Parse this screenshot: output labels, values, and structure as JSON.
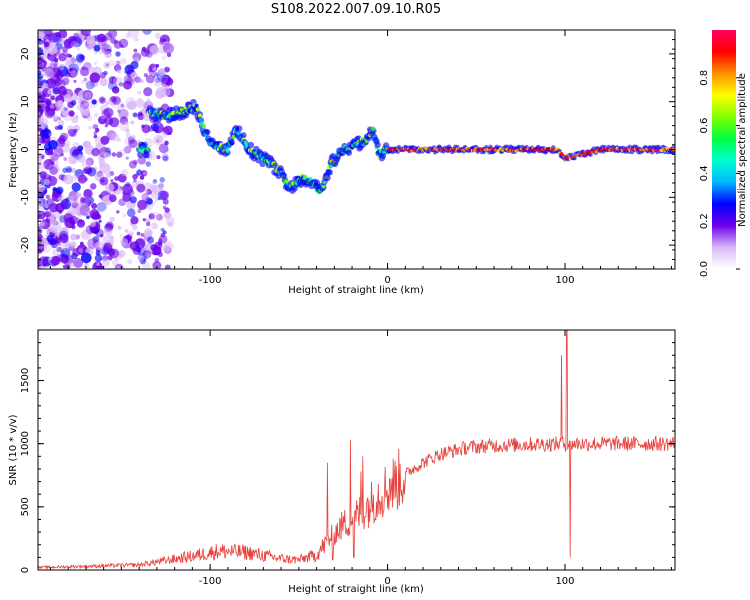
{
  "title": "S108.2022.007.09.10.R05",
  "chart_data": [
    {
      "type": "heatmap",
      "xlabel": "Height of straight line (km)",
      "ylabel": "Frequency (Hz)",
      "xlim": [
        -197,
        162
      ],
      "ylim": [
        -25,
        25
      ],
      "xticks": [
        -100,
        0,
        100
      ],
      "xtick_labels": [
        "-100",
        "0",
        "100"
      ],
      "yticks": [
        -20,
        -10,
        0,
        10,
        20
      ],
      "ytick_labels": [
        "-20",
        "-10",
        "0",
        "10",
        "20"
      ],
      "colorbar": {
        "label": "Normalized spectral amplitude",
        "range": [
          0,
          1
        ],
        "ticks": [
          0,
          0.2,
          0.4,
          0.6,
          0.8
        ],
        "tick_labels": [
          "0.0",
          "0.2",
          "0.4",
          "0.6",
          "0.8"
        ],
        "colormap": [
          "#ffffff",
          "#d8b8f8",
          "#6a00e8",
          "#0000ff",
          "#00b8ff",
          "#00ffd0",
          "#00ff40",
          "#80ff00",
          "#ffff00",
          "#ff9000",
          "#ff0000",
          "#ff0060"
        ]
      },
      "ridge": [
        {
          "x": -135,
          "y": 8
        },
        {
          "x": -125,
          "y": 7
        },
        {
          "x": -115,
          "y": 8
        },
        {
          "x": -108,
          "y": 9
        },
        {
          "x": -100,
          "y": 1
        },
        {
          "x": -90,
          "y": 0
        },
        {
          "x": -85,
          "y": 4
        },
        {
          "x": -78,
          "y": 0
        },
        {
          "x": -70,
          "y": -2
        },
        {
          "x": -62,
          "y": -4
        },
        {
          "x": -55,
          "y": -8
        },
        {
          "x": -48,
          "y": -6
        },
        {
          "x": -42,
          "y": -7
        },
        {
          "x": -38,
          "y": -9
        },
        {
          "x": -32,
          "y": -3
        },
        {
          "x": -25,
          "y": 0
        },
        {
          "x": -18,
          "y": 1
        },
        {
          "x": -12,
          "y": 2
        },
        {
          "x": -8,
          "y": 4
        },
        {
          "x": -5,
          "y": -1
        },
        {
          "x": 0,
          "y": 0
        },
        {
          "x": 20,
          "y": 0
        },
        {
          "x": 60,
          "y": 0
        },
        {
          "x": 96,
          "y": 0
        },
        {
          "x": 100,
          "y": -2
        },
        {
          "x": 120,
          "y": 0
        },
        {
          "x": 162,
          "y": 0
        }
      ]
    },
    {
      "type": "line",
      "xlabel": "Height of straight line (km)",
      "ylabel": "SNR (10 * v/v)",
      "xlim": [
        -197,
        162
      ],
      "ylim": [
        0,
        1900
      ],
      "xticks": [
        -100,
        0,
        100
      ],
      "xtick_labels": [
        "-100",
        "0",
        "100"
      ],
      "yticks": [
        0,
        500,
        1000,
        1500
      ],
      "ytick_labels": [
        "0",
        "500",
        "1000",
        "1500"
      ],
      "color": "#e8413c",
      "trend": [
        {
          "x": -197,
          "y": 20
        },
        {
          "x": -140,
          "y": 40
        },
        {
          "x": -110,
          "y": 110
        },
        {
          "x": -95,
          "y": 150
        },
        {
          "x": -80,
          "y": 140
        },
        {
          "x": -60,
          "y": 90
        },
        {
          "x": -50,
          "y": 80
        },
        {
          "x": -40,
          "y": 120
        },
        {
          "x": -32,
          "y": 260
        },
        {
          "x": -25,
          "y": 360
        },
        {
          "x": -18,
          "y": 420
        },
        {
          "x": -10,
          "y": 520
        },
        {
          "x": -5,
          "y": 600
        },
        {
          "x": 0,
          "y": 650
        },
        {
          "x": 5,
          "y": 700
        },
        {
          "x": 12,
          "y": 780
        },
        {
          "x": 20,
          "y": 850
        },
        {
          "x": 30,
          "y": 920
        },
        {
          "x": 45,
          "y": 970
        },
        {
          "x": 60,
          "y": 985
        },
        {
          "x": 80,
          "y": 995
        },
        {
          "x": 100,
          "y": 1000
        },
        {
          "x": 130,
          "y": 1000
        },
        {
          "x": 162,
          "y": 1000
        }
      ],
      "spikes": [
        {
          "x": -34,
          "y": 850
        },
        {
          "x": -31,
          "y": 80
        },
        {
          "x": -21,
          "y": 1030
        },
        {
          "x": -19,
          "y": 100
        },
        {
          "x": -15,
          "y": 780
        },
        {
          "x": -14,
          "y": 900
        },
        {
          "x": 98,
          "y": 1700
        },
        {
          "x": 101,
          "y": 1900
        },
        {
          "x": 103,
          "y": 100
        }
      ]
    }
  ]
}
